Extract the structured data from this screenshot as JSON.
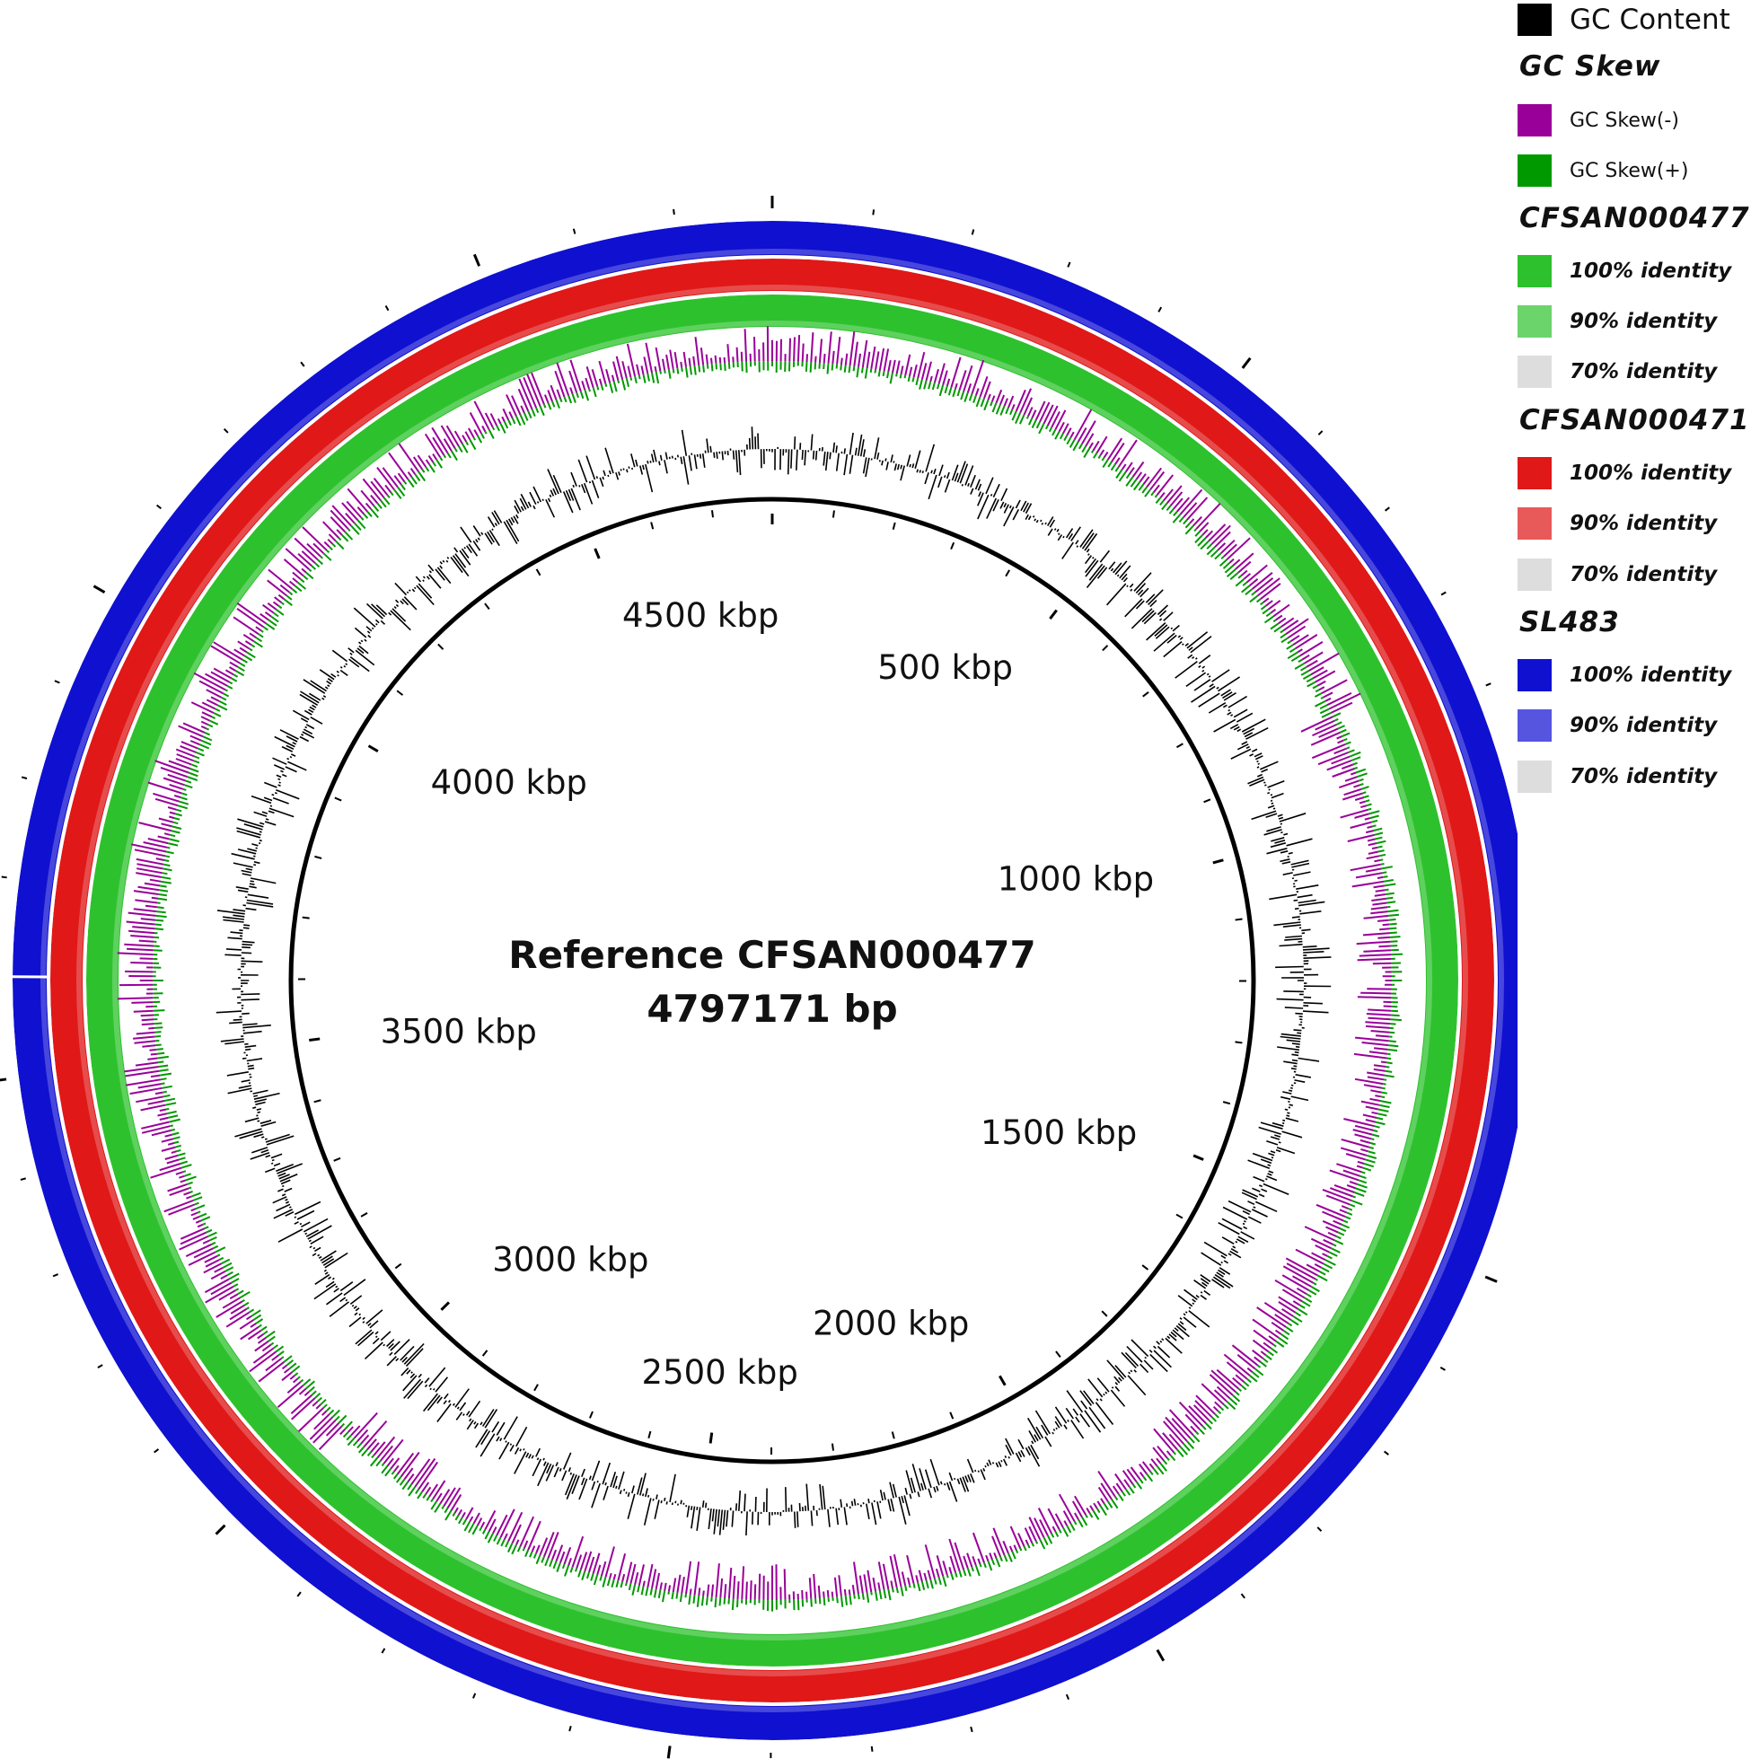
{
  "title": "Reference CFSAN000477",
  "genome_size_label": "4797171 bp",
  "tick_labels": [
    {
      "text": "4500 kbp",
      "kbp": 4500
    },
    {
      "text": "500 kbp",
      "kbp": 500
    },
    {
      "text": "4000 kbp",
      "kbp": 4000
    },
    {
      "text": "1000 kbp",
      "kbp": 1000
    },
    {
      "text": "3500 kbp",
      "kbp": 3500
    },
    {
      "text": "1500 kbp",
      "kbp": 1500
    },
    {
      "text": "3000 kbp",
      "kbp": 3000
    },
    {
      "text": "2000 kbp",
      "kbp": 2000
    },
    {
      "text": "2500 kbp",
      "kbp": 2500
    }
  ],
  "rings": [
    {
      "name": "SL483",
      "color": "#1010d0",
      "light_color": "#5555e0"
    },
    {
      "name": "CFSAN000471",
      "color": "#e01818",
      "light_color": "#e85a5a"
    },
    {
      "name": "CFSAN000477",
      "color": "#2ec12e",
      "light_color": "#6bd46b"
    }
  ],
  "colors": {
    "gc_content": "#000000",
    "gc_skew_neg": "#990099",
    "gc_skew_pos": "#009900",
    "backbone": "#000000"
  },
  "legend": {
    "gc_content": {
      "label": "GC Content",
      "color": "#000000"
    },
    "gc_skew": {
      "heading": "GC Skew",
      "items": [
        {
          "label": "GC Skew(-)",
          "color": "#990099"
        },
        {
          "label": "GC Skew(+)",
          "color": "#009900"
        }
      ]
    },
    "groups": [
      {
        "heading": "CFSAN000477",
        "items": [
          {
            "label": "100% identity",
            "color": "#2ec12e"
          },
          {
            "label": "90% identity",
            "color": "#6bd46b"
          },
          {
            "label": "70% identity",
            "color": "#dddddd"
          }
        ]
      },
      {
        "heading": "CFSAN000471",
        "items": [
          {
            "label": "100% identity",
            "color": "#e01818"
          },
          {
            "label": "90% identity",
            "color": "#e85a5a"
          },
          {
            "label": "70% identity",
            "color": "#dddddd"
          }
        ]
      },
      {
        "heading": "SL483",
        "items": [
          {
            "label": "100% identity",
            "color": "#1010d0"
          },
          {
            "label": "90% identity",
            "color": "#5555e0"
          },
          {
            "label": "70% identity",
            "color": "#dddddd"
          }
        ]
      }
    ]
  }
}
